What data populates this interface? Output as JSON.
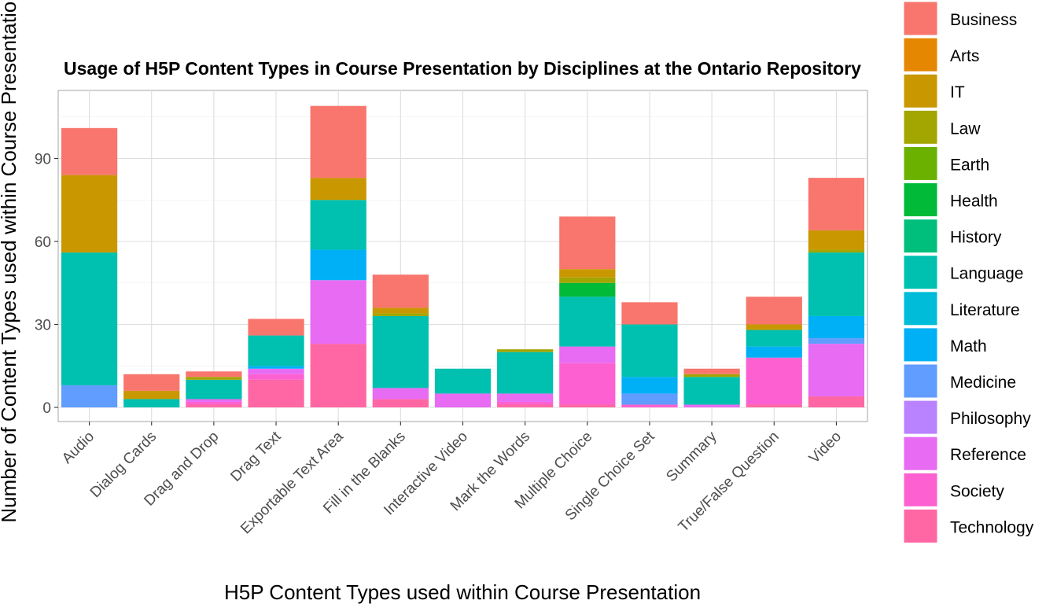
{
  "chart_data": {
    "type": "bar",
    "stacked": true,
    "title": "Usage of H5P Content Types in Course Presentation by Disciplines at the Ontario Repository",
    "xlabel": "H5P Content Types used within Course Presentation",
    "ylabel": "Number of Content Types used within Course Presentation",
    "ylim": [
      -5,
      113
    ],
    "yticks": [
      0,
      30,
      60,
      90
    ],
    "grid": true,
    "legend_position": "right",
    "categories": [
      "Audio",
      "Dialog Cards",
      "Drag and Drop",
      "Drag Text",
      "Exportable Text Area",
      "Fill in the Blanks",
      "Interactive Video",
      "Mark the Words",
      "Multiple Choice",
      "Single Choice Set",
      "Summary",
      "True/False Question",
      "Video"
    ],
    "series": [
      {
        "name": "Business",
        "color": "#F8766D",
        "values": [
          17,
          6,
          2,
          6,
          26,
          12,
          0,
          0,
          19,
          8,
          2,
          10,
          19
        ]
      },
      {
        "name": "Arts",
        "color": "#E58700",
        "values": [
          0,
          0,
          0,
          0,
          0,
          0,
          0,
          0,
          0,
          0,
          0,
          0,
          0
        ]
      },
      {
        "name": "IT",
        "color": "#C99800",
        "values": [
          28,
          3,
          0,
          0,
          8,
          2,
          0,
          0,
          3,
          0,
          0,
          2,
          7
        ]
      },
      {
        "name": "Law",
        "color": "#A3A500",
        "values": [
          0,
          0,
          1,
          0,
          0,
          1,
          0,
          1,
          2,
          0,
          1,
          0,
          1
        ]
      },
      {
        "name": "Earth",
        "color": "#6BB100",
        "values": [
          0,
          0,
          0,
          0,
          0,
          0,
          0,
          0,
          0,
          0,
          0,
          0,
          0
        ]
      },
      {
        "name": "Health",
        "color": "#00BA38",
        "values": [
          0,
          0,
          0,
          0,
          0,
          0,
          0,
          0,
          5,
          0,
          0,
          0,
          0
        ]
      },
      {
        "name": "History",
        "color": "#00BF7D",
        "values": [
          0,
          0,
          0,
          0,
          0,
          0,
          0,
          0,
          0,
          0,
          0,
          0,
          0
        ]
      },
      {
        "name": "Language",
        "color": "#00C0AF",
        "values": [
          48,
          3,
          7,
          11,
          18,
          26,
          9,
          15,
          18,
          19,
          10,
          6,
          23
        ]
      },
      {
        "name": "Literature",
        "color": "#00BCD8",
        "values": [
          0,
          0,
          0,
          0,
          0,
          0,
          0,
          0,
          0,
          0,
          0,
          0,
          0
        ]
      },
      {
        "name": "Math",
        "color": "#00B0F6",
        "values": [
          0,
          0,
          0,
          1,
          11,
          0,
          0,
          0,
          0,
          6,
          0,
          4,
          8
        ]
      },
      {
        "name": "Medicine",
        "color": "#619CFF",
        "values": [
          8,
          0,
          0,
          0,
          0,
          0,
          0,
          0,
          0,
          4,
          0,
          0,
          2
        ]
      },
      {
        "name": "Philosophy",
        "color": "#B983FF",
        "values": [
          0,
          0,
          0,
          0,
          0,
          0,
          0,
          0,
          0,
          0,
          0,
          0,
          0
        ]
      },
      {
        "name": "Reference",
        "color": "#E76BF3",
        "values": [
          0,
          0,
          1,
          2,
          23,
          4,
          5,
          3,
          6,
          0,
          1,
          0,
          19
        ]
      },
      {
        "name": "Society",
        "color": "#FD61D1",
        "values": [
          0,
          0,
          1,
          2,
          0,
          0,
          0,
          1,
          15,
          1,
          0,
          17,
          0
        ]
      },
      {
        "name": "Technology",
        "color": "#FF67A4",
        "values": [
          0,
          0,
          1,
          10,
          23,
          3,
          0,
          1,
          1,
          0,
          0,
          1,
          4
        ]
      }
    ]
  }
}
